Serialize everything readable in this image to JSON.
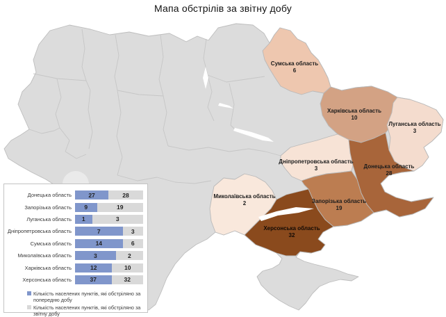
{
  "title": "Мапа обстрілів за звітну добу",
  "map": {
    "base_fill": "#dcdcdc",
    "border_color": "#c2c2c2",
    "regions": [
      {
        "name": "Сумська область",
        "value": "6",
        "color": "#eec7af"
      },
      {
        "name": "Харківська область",
        "value": "10",
        "color": "#d3a284"
      },
      {
        "name": "Луганська область",
        "value": "3",
        "color": "#f4dcce"
      },
      {
        "name": "Дніпропетровська область",
        "value": "3",
        "color": "#f7e3d6"
      },
      {
        "name": "Донецька область",
        "value": "28",
        "color": "#a8653a"
      },
      {
        "name": "Запорізька область",
        "value": "19",
        "color": "#bc7d51"
      },
      {
        "name": "Миколаївська область",
        "value": "2",
        "color": "#f9e8dc"
      },
      {
        "name": "Херсонська область",
        "value": "32",
        "color": "#8a4a1d"
      }
    ]
  },
  "chart_data": {
    "type": "bar",
    "variant": "horizontal-100pct-stacked",
    "title": "",
    "categories": [
      "Донецька область",
      "Запорізька область",
      "Луганська область",
      "Дніпропетровська область",
      "Сумська область",
      "Миколаївська область",
      "Харківська область",
      "Херсонська область"
    ],
    "series": [
      {
        "name": "Кількість населених пунктів, які обстріляно за попередню добу",
        "color": "#8096cb",
        "values": [
          27,
          9,
          1,
          7,
          14,
          3,
          12,
          37
        ]
      },
      {
        "name": "Кількість населених пунктів, які обстріляно за звітну добу",
        "color": "#d9d9d9",
        "values": [
          28,
          19,
          3,
          3,
          6,
          2,
          10,
          32
        ]
      }
    ],
    "legend_position": "bottom",
    "grid": false
  }
}
